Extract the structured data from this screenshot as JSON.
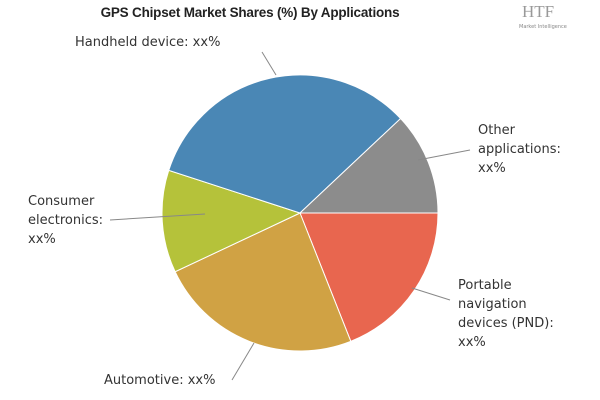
{
  "chart_data": {
    "type": "pie",
    "title": "GPS Chipset Market Shares (%) By Applications",
    "categories": [
      "Portable navigation devices (PND): xx%",
      "Automotive: xx%",
      "Consumer electronics: xx%",
      "Handheld device: xx%",
      "Other applications: xx%"
    ],
    "values": [
      19,
      24,
      12,
      33,
      12
    ],
    "colors": [
      "#e8664f",
      "#d0a244",
      "#b5c23a",
      "#4a87b5",
      "#8c8c8c"
    ]
  },
  "logo": {
    "text": "HTF",
    "subtext": "Market Intelligence"
  }
}
